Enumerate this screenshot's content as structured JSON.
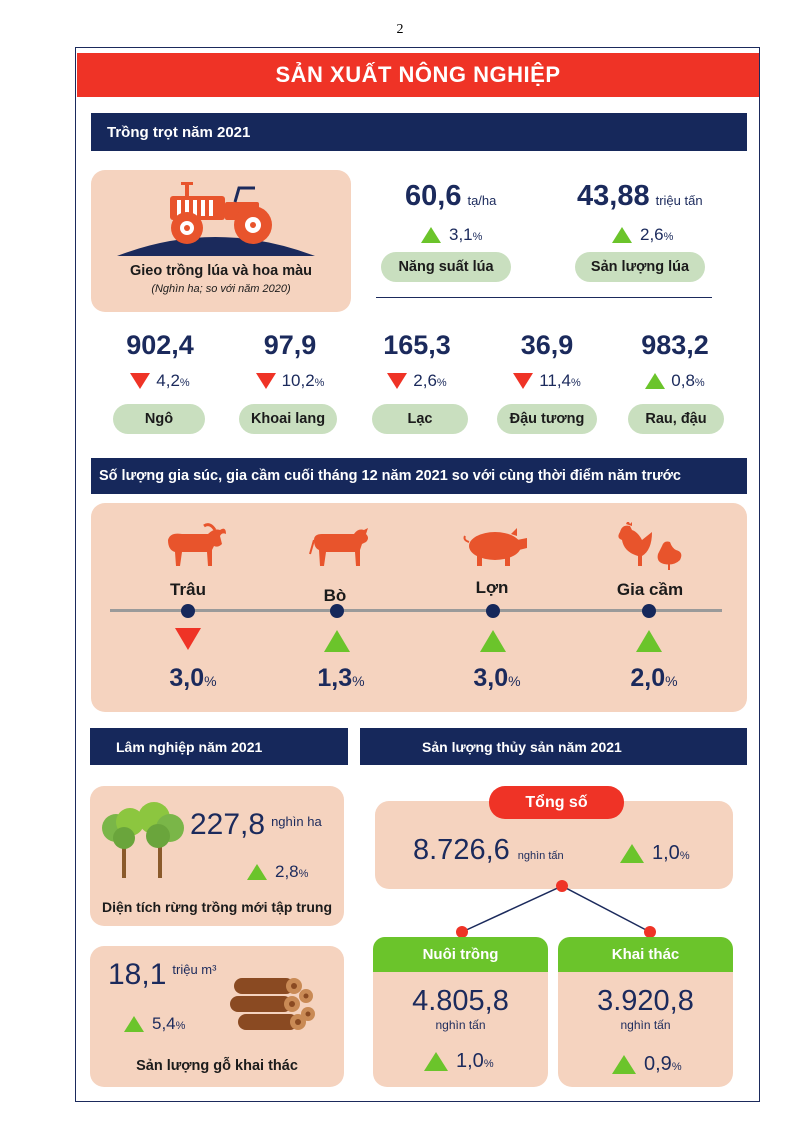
{
  "page_number": "2",
  "title": "SẢN XUẤT NÔNG NGHIỆP",
  "crops": {
    "header": "Trồng trọt năm 2021",
    "rice_area": {
      "label": "Gieo trồng lúa và hoa màu",
      "note": "(Nghìn ha; so với năm 2020)"
    },
    "yield": {
      "value": "60,6",
      "unit": "tạ/ha",
      "change": "3,1",
      "pct": "%",
      "direction": "up",
      "label": "Năng suất lúa"
    },
    "production": {
      "value": "43,88",
      "unit": "triệu tấn",
      "change": "2,6",
      "pct": "%",
      "direction": "up",
      "label": "Sản lượng lúa"
    },
    "items": [
      {
        "value": "902,4",
        "change": "4,2",
        "pct": "%",
        "direction": "down",
        "label": "Ngô"
      },
      {
        "value": "97,9",
        "change": "10,2",
        "pct": "%",
        "direction": "down",
        "label": "Khoai lang"
      },
      {
        "value": "165,3",
        "change": "2,6",
        "pct": "%",
        "direction": "down",
        "label": "Lạc"
      },
      {
        "value": "36,9",
        "change": "11,4",
        "pct": "%",
        "direction": "down",
        "label": "Đậu tương"
      },
      {
        "value": "983,2",
        "change": "0,8",
        "pct": "%",
        "direction": "up",
        "label": "Rau, đậu"
      }
    ]
  },
  "livestock": {
    "header": "Số lượng gia súc, gia cầm cuối tháng 12 năm 2021 so với cùng thời điểm năm trước",
    "items": [
      {
        "label": "Trâu",
        "change": "3,0",
        "pct": "%",
        "direction": "down",
        "icon": "buffalo-icon"
      },
      {
        "label": "Bò",
        "change": "1,3",
        "pct": "%",
        "direction": "up",
        "icon": "cow-icon"
      },
      {
        "label": "Lợn",
        "change": "3,0",
        "pct": "%",
        "direction": "up",
        "icon": "pig-icon"
      },
      {
        "label": "Gia cầm",
        "change": "2,0",
        "pct": "%",
        "direction": "up",
        "icon": "poultry-icon"
      }
    ]
  },
  "forestry": {
    "header": "Lâm nghiệp năm 2021",
    "area": {
      "value": "227,8",
      "unit": "nghìn ha",
      "change": "2,8",
      "pct": "%",
      "direction": "up",
      "label": "Diện tích rừng trồng mới tập trung"
    },
    "timber": {
      "value": "18,1",
      "unit": "triệu m³",
      "change": "5,4",
      "pct": "%",
      "direction": "up",
      "label": "Sản lượng gỗ khai thác"
    }
  },
  "fishery": {
    "header": "Sản lượng thủy sản năm 2021",
    "total": {
      "label": "Tổng số",
      "value": "8.726,6",
      "unit": "nghìn tấn",
      "change": "1,0",
      "pct": "%",
      "direction": "up"
    },
    "aquaculture": {
      "label": "Nuôi trồng",
      "value": "4.805,8",
      "unit": "nghìn tấn",
      "change": "1,0",
      "pct": "%",
      "direction": "up"
    },
    "capture": {
      "label": "Khai thác",
      "value": "3.920,8",
      "unit": "nghìn tấn",
      "change": "0,9",
      "pct": "%",
      "direction": "up"
    }
  },
  "colors": {
    "navy": "#16285b",
    "red": "#ef3326",
    "green": "#6bc42b",
    "peach": "#f5d3bf",
    "pill": "#c9dfbf",
    "icon_orange": "#e8542c"
  }
}
